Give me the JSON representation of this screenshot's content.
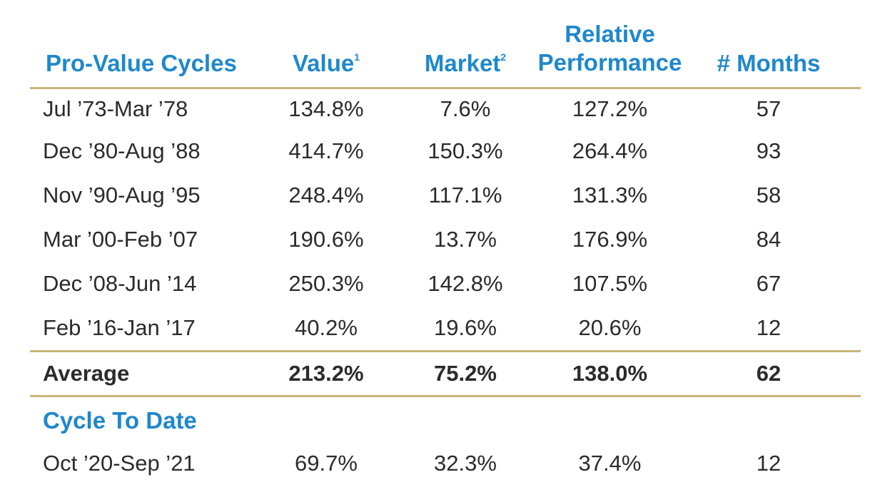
{
  "headers": {
    "cycle": "Pro-Value Cycles",
    "value": "Value",
    "value_note": "1",
    "market": "Market",
    "market_note": "2",
    "relative_line1": "Relative",
    "relative_line2": "Performance",
    "months": "# Months"
  },
  "rows": [
    {
      "period": "Jul ’73-Mar ’78",
      "value": "134.8%",
      "market": "7.6%",
      "relative": "127.2%",
      "months": "57"
    },
    {
      "period": "Dec ’80-Aug ’88",
      "value": "414.7%",
      "market": "150.3%",
      "relative": "264.4%",
      "months": "93"
    },
    {
      "period": "Nov ’90-Aug ’95",
      "value": "248.4%",
      "market": "117.1%",
      "relative": "131.3%",
      "months": "58"
    },
    {
      "period": "Mar ’00-Feb ’07",
      "value": "190.6%",
      "market": "13.7%",
      "relative": "176.9%",
      "months": "84"
    },
    {
      "period": "Dec ’08-Jun ’14",
      "value": "250.3%",
      "market": "142.8%",
      "relative": "107.5%",
      "months": "67"
    },
    {
      "period": "Feb ’16-Jan ’17",
      "value": "40.2%",
      "market": "19.6%",
      "relative": "20.6%",
      "months": "12"
    }
  ],
  "average": {
    "label": "Average",
    "value": "213.2%",
    "market": "75.2%",
    "relative": "138.0%",
    "months": "62"
  },
  "cycle_to_date": {
    "title": "Cycle To Date",
    "row": {
      "period": "Oct ’20-Sep ’21",
      "value": "69.7%",
      "market": "32.3%",
      "relative": "37.4%",
      "months": "12"
    }
  },
  "colors": {
    "accent": "#1e88cc",
    "rule": "#c8b47a",
    "text": "#2b2b2b"
  }
}
